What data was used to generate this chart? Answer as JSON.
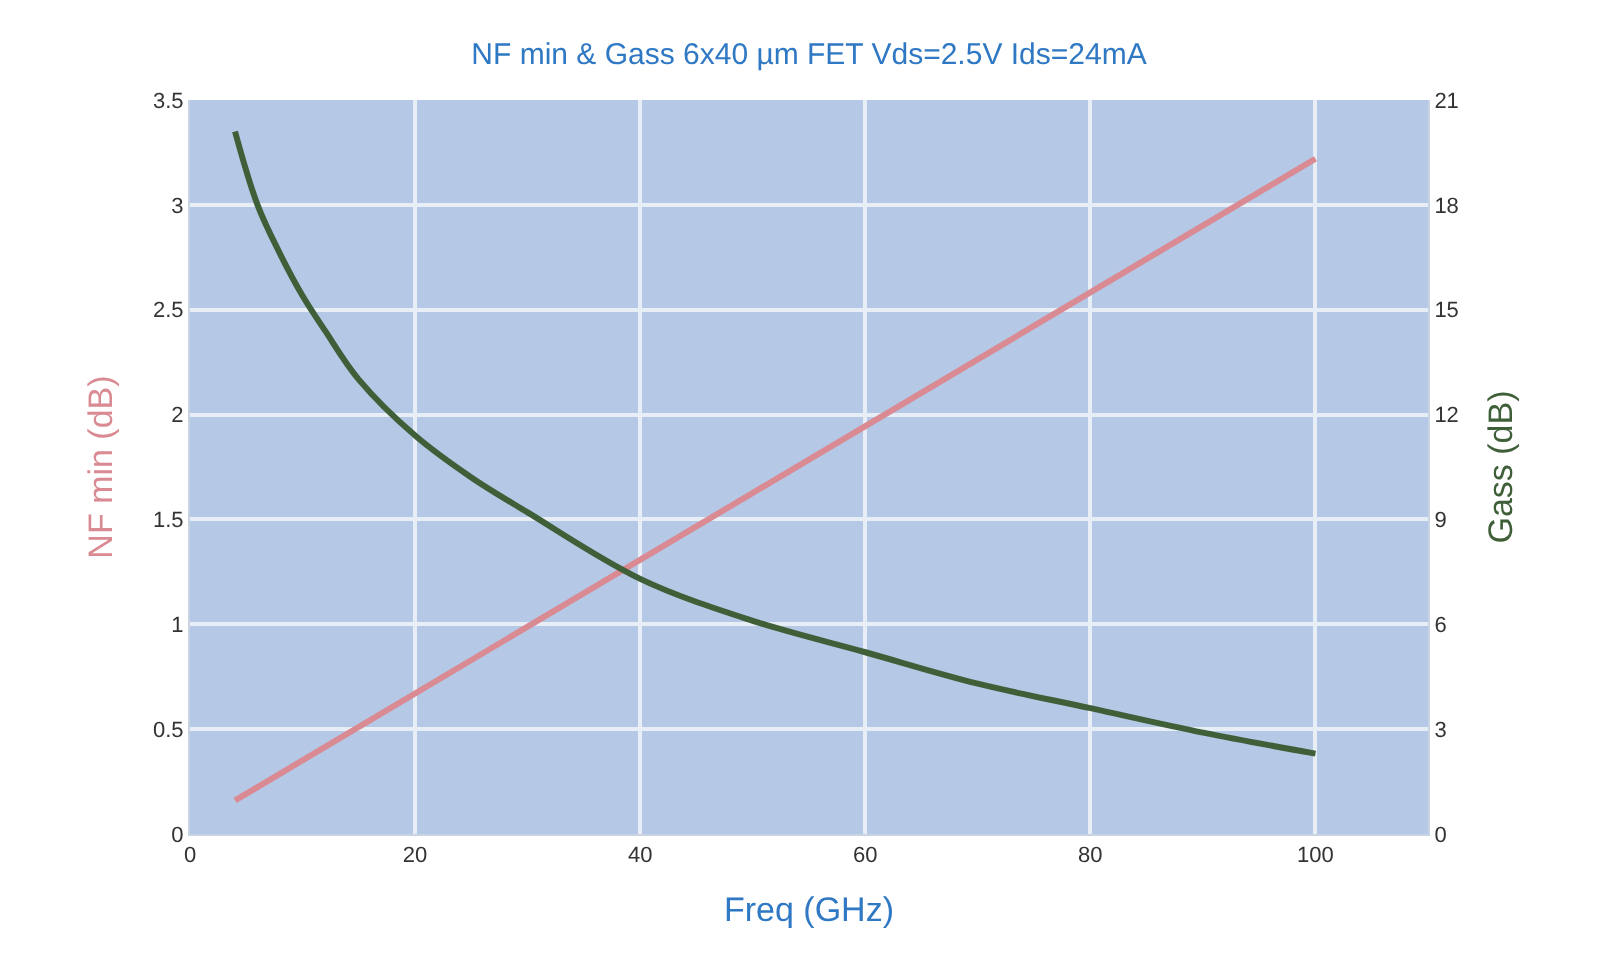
{
  "chart_data": {
    "type": "line",
    "title": "NF min & Gass 6x40 µm FET Vds=2.5V Ids=24mA",
    "xlabel": "Freq (GHz)",
    "ylabel": "NF min (dB)",
    "y2label": "Gass (dB)",
    "xlim": [
      0,
      110
    ],
    "xticks": [
      0,
      20,
      40,
      60,
      80,
      100
    ],
    "ylim": [
      0,
      3.5
    ],
    "yticks": [
      0,
      0.5,
      1,
      1.5,
      2,
      2.5,
      3,
      3.5
    ],
    "y2lim": [
      0,
      21
    ],
    "y2ticks": [
      0,
      3,
      6,
      9,
      12,
      15,
      18,
      21
    ],
    "grid": true,
    "legend": false,
    "marker": "none",
    "line_style": "solid",
    "series": [
      {
        "color": "#d98a92",
        "x": [
          4,
          100
        ],
        "values": [
          0.16,
          3.22
        ]
      },
      {
        "color": "#3f5f38",
        "axis": "y2",
        "x": [
          4,
          6,
          8,
          10,
          12,
          15,
          20,
          25,
          30,
          40,
          50,
          60,
          70,
          80,
          90,
          100
        ],
        "values": [
          20.1,
          18.0,
          16.6,
          15.4,
          14.4,
          13.0,
          11.4,
          10.2,
          9.2,
          7.3,
          6.1,
          5.2,
          4.3,
          3.6,
          2.9,
          2.3
        ]
      }
    ]
  }
}
